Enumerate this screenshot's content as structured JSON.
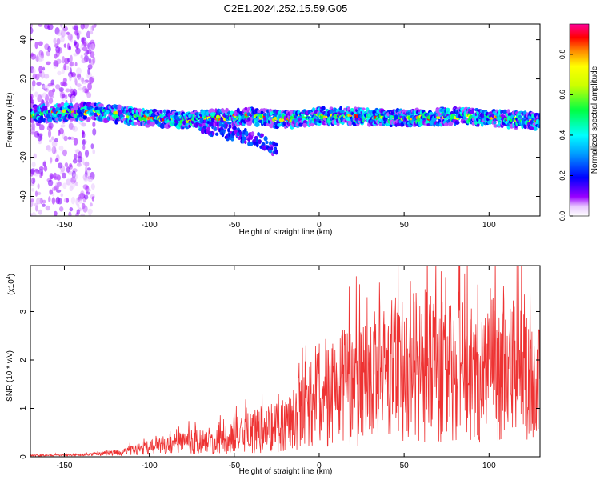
{
  "title": "C2E1.2024.252.15.59.G05",
  "chart_data": [
    {
      "type": "heatmap",
      "xlabel": "Height of straight line (km)",
      "ylabel": "Frequency (Hz)",
      "xlim": [
        -170,
        130
      ],
      "ylim": [
        -50,
        48
      ],
      "xticks": [
        -150,
        -100,
        -50,
        0,
        50,
        100
      ],
      "yticks": [
        -40,
        -20,
        0,
        20,
        40
      ],
      "colorbar": {
        "label": "Normalized spectral amplitude",
        "range": [
          0,
          0.95
        ],
        "ticks": [
          0.0,
          0.2,
          0.4,
          0.6,
          0.8
        ],
        "tick_labels": [
          "0.0",
          "0.2",
          "0.4",
          "0.6",
          "0.8"
        ]
      },
      "ridge": {
        "x": [
          -170,
          -150,
          -130,
          -120,
          -100,
          -80,
          -60,
          -40,
          -20,
          0,
          20,
          40,
          60,
          80,
          100,
          120,
          130
        ],
        "freq_hz": [
          2,
          3,
          3,
          2,
          0,
          -1,
          0,
          1,
          -1,
          1,
          1,
          0,
          0,
          1,
          0,
          -1,
          -2
        ]
      },
      "descending_branch": {
        "x": [
          -70,
          -60,
          -50,
          -40,
          -30,
          -25
        ],
        "freq_hz": [
          -4,
          -6,
          -8,
          -10,
          -13,
          -17
        ]
      }
    },
    {
      "type": "line",
      "xlabel": "Height of straight line (km)",
      "ylabel": "SNR (10 * v/v)",
      "y_multiplier_label": "(x10",
      "y_multiplier_exp": "4",
      "xlim": [
        -170,
        130
      ],
      "ylim": [
        0,
        3.95
      ],
      "xticks": [
        -150,
        -100,
        -50,
        0,
        50,
        100
      ],
      "yticks": [
        0,
        1,
        2,
        3
      ],
      "series": [
        {
          "color": "#ee3333",
          "envelope": {
            "x": [
              -170,
              -140,
              -120,
              -100,
              -80,
              -60,
              -40,
              -20,
              0,
              20,
              40,
              60,
              80,
              100,
              120,
              130
            ],
            "mean": [
              0.03,
              0.04,
              0.08,
              0.2,
              0.3,
              0.35,
              0.5,
              0.7,
              1.2,
              1.5,
              1.8,
              1.9,
              1.7,
              1.8,
              1.75,
              1.7
            ],
            "spread": [
              0.02,
              0.02,
              0.06,
              0.15,
              0.25,
              0.3,
              0.45,
              0.6,
              1.0,
              1.3,
              1.5,
              1.6,
              1.5,
              1.5,
              1.45,
              1.4
            ]
          }
        }
      ]
    }
  ]
}
